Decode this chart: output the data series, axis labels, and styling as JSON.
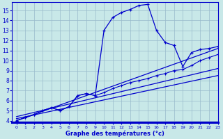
{
  "background_color": "#c8e8e8",
  "grid_color": "#99bbcc",
  "line_color": "#0000cc",
  "xlabel": "Graphe des températures (°c)",
  "xlim": [
    -0.5,
    23
  ],
  "ylim": [
    3.8,
    15.8
  ],
  "yticks": [
    4,
    5,
    6,
    7,
    8,
    9,
    10,
    11,
    12,
    13,
    14,
    15
  ],
  "xticks": [
    0,
    1,
    2,
    3,
    4,
    5,
    6,
    7,
    8,
    9,
    10,
    11,
    12,
    13,
    14,
    15,
    16,
    17,
    18,
    19,
    20,
    21,
    22,
    23
  ],
  "peak_x": [
    0,
    1,
    2,
    3,
    4,
    5,
    6,
    7,
    8,
    9,
    10,
    11,
    12,
    13,
    14,
    15,
    16,
    17,
    18,
    19,
    20,
    21,
    22,
    23
  ],
  "peak_y": [
    4.0,
    4.3,
    4.6,
    5.0,
    5.3,
    5.0,
    5.4,
    6.5,
    6.7,
    6.5,
    13.0,
    14.3,
    14.8,
    15.1,
    15.5,
    15.6,
    13.0,
    11.8,
    11.5,
    9.4,
    10.8,
    11.1,
    11.2,
    11.4
  ],
  "trend1_x": [
    0,
    23
  ],
  "trend1_y": [
    4.2,
    8.5
  ],
  "trend2_x": [
    0,
    23
  ],
  "trend2_y": [
    4.4,
    9.2
  ],
  "trend3_x": [
    0,
    23
  ],
  "trend3_y": [
    4.0,
    11.2
  ],
  "low_x": [
    0,
    1,
    2,
    3,
    4,
    5,
    6,
    7,
    8,
    9,
    10,
    11,
    12,
    13,
    14,
    15,
    16,
    17,
    18,
    19,
    20,
    21,
    22,
    23
  ],
  "low_y": [
    4.0,
    4.3,
    4.6,
    5.0,
    5.3,
    5.0,
    5.4,
    6.5,
    6.7,
    6.5,
    6.8,
    7.2,
    7.5,
    7.8,
    8.0,
    8.2,
    8.5,
    8.7,
    9.0,
    9.1,
    9.5,
    10.0,
    10.3,
    10.6
  ]
}
